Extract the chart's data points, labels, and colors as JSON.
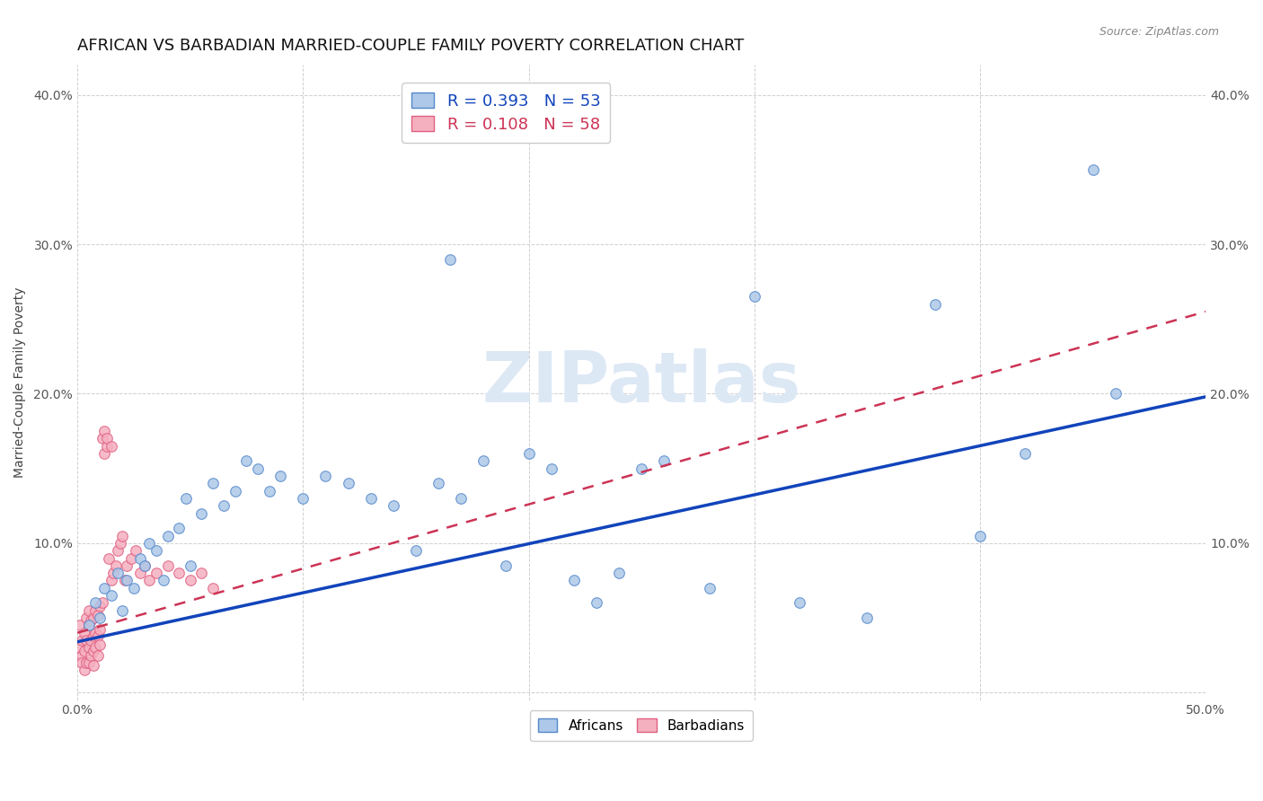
{
  "title": "AFRICAN VS BARBADIAN MARRIED-COUPLE FAMILY POVERTY CORRELATION CHART",
  "source": "Source: ZipAtlas.com",
  "ylabel": "Married-Couple Family Poverty",
  "xlim": [
    0,
    0.5
  ],
  "ylim": [
    -0.005,
    0.42
  ],
  "african_color": "#adc8e8",
  "barbadian_color": "#f5b0c0",
  "african_edge_color": "#5588cc",
  "barbadian_edge_color": "#e06080",
  "trend_african_color": "#1144bb",
  "trend_barbadian_color": "#cc3355",
  "R_african": 0.393,
  "N_african": 53,
  "R_barbadian": 0.108,
  "N_barbadian": 58,
  "watermark": "ZIPatlas",
  "background_color": "#ffffff",
  "grid_color": "#bbbbbb",
  "title_fontsize": 13,
  "label_fontsize": 10,
  "tick_fontsize": 10,
  "marker_size": 70,
  "african_x": [
    0.005,
    0.008,
    0.01,
    0.012,
    0.015,
    0.018,
    0.02,
    0.022,
    0.025,
    0.028,
    0.03,
    0.032,
    0.035,
    0.038,
    0.04,
    0.045,
    0.048,
    0.05,
    0.055,
    0.06,
    0.065,
    0.07,
    0.075,
    0.08,
    0.085,
    0.09,
    0.1,
    0.11,
    0.12,
    0.13,
    0.14,
    0.15,
    0.16,
    0.165,
    0.17,
    0.18,
    0.19,
    0.2,
    0.21,
    0.22,
    0.23,
    0.24,
    0.25,
    0.26,
    0.28,
    0.3,
    0.32,
    0.35,
    0.38,
    0.4,
    0.42,
    0.45,
    0.46
  ],
  "african_y": [
    0.045,
    0.06,
    0.05,
    0.07,
    0.065,
    0.08,
    0.055,
    0.075,
    0.07,
    0.09,
    0.085,
    0.1,
    0.095,
    0.075,
    0.105,
    0.11,
    0.13,
    0.085,
    0.12,
    0.14,
    0.125,
    0.135,
    0.155,
    0.15,
    0.135,
    0.145,
    0.13,
    0.145,
    0.14,
    0.13,
    0.125,
    0.095,
    0.14,
    0.29,
    0.13,
    0.155,
    0.085,
    0.16,
    0.15,
    0.075,
    0.06,
    0.08,
    0.15,
    0.155,
    0.07,
    0.265,
    0.06,
    0.05,
    0.26,
    0.105,
    0.16,
    0.35,
    0.2
  ],
  "barbadian_x": [
    0.001,
    0.001,
    0.002,
    0.002,
    0.002,
    0.003,
    0.003,
    0.003,
    0.004,
    0.004,
    0.004,
    0.005,
    0.005,
    0.005,
    0.005,
    0.006,
    0.006,
    0.006,
    0.007,
    0.007,
    0.007,
    0.007,
    0.008,
    0.008,
    0.008,
    0.009,
    0.009,
    0.009,
    0.01,
    0.01,
    0.01,
    0.011,
    0.011,
    0.012,
    0.012,
    0.013,
    0.013,
    0.014,
    0.015,
    0.015,
    0.016,
    0.017,
    0.018,
    0.019,
    0.02,
    0.021,
    0.022,
    0.024,
    0.026,
    0.028,
    0.03,
    0.032,
    0.035,
    0.04,
    0.045,
    0.05,
    0.055,
    0.06
  ],
  "barbadian_y": [
    0.045,
    0.03,
    0.025,
    0.035,
    0.02,
    0.04,
    0.028,
    0.015,
    0.05,
    0.035,
    0.02,
    0.045,
    0.03,
    0.055,
    0.02,
    0.048,
    0.035,
    0.025,
    0.05,
    0.038,
    0.028,
    0.018,
    0.055,
    0.04,
    0.03,
    0.052,
    0.038,
    0.025,
    0.058,
    0.042,
    0.032,
    0.06,
    0.17,
    0.175,
    0.16,
    0.165,
    0.17,
    0.09,
    0.075,
    0.165,
    0.08,
    0.085,
    0.095,
    0.1,
    0.105,
    0.075,
    0.085,
    0.09,
    0.095,
    0.08,
    0.085,
    0.075,
    0.08,
    0.085,
    0.08,
    0.075,
    0.08,
    0.07
  ],
  "trend_af_x0": 0.0,
  "trend_af_y0": 0.034,
  "trend_af_x1": 0.5,
  "trend_af_y1": 0.198,
  "trend_bar_x0": 0.0,
  "trend_bar_y0": 0.04,
  "trend_bar_x1": 0.5,
  "trend_bar_y1": 0.255
}
